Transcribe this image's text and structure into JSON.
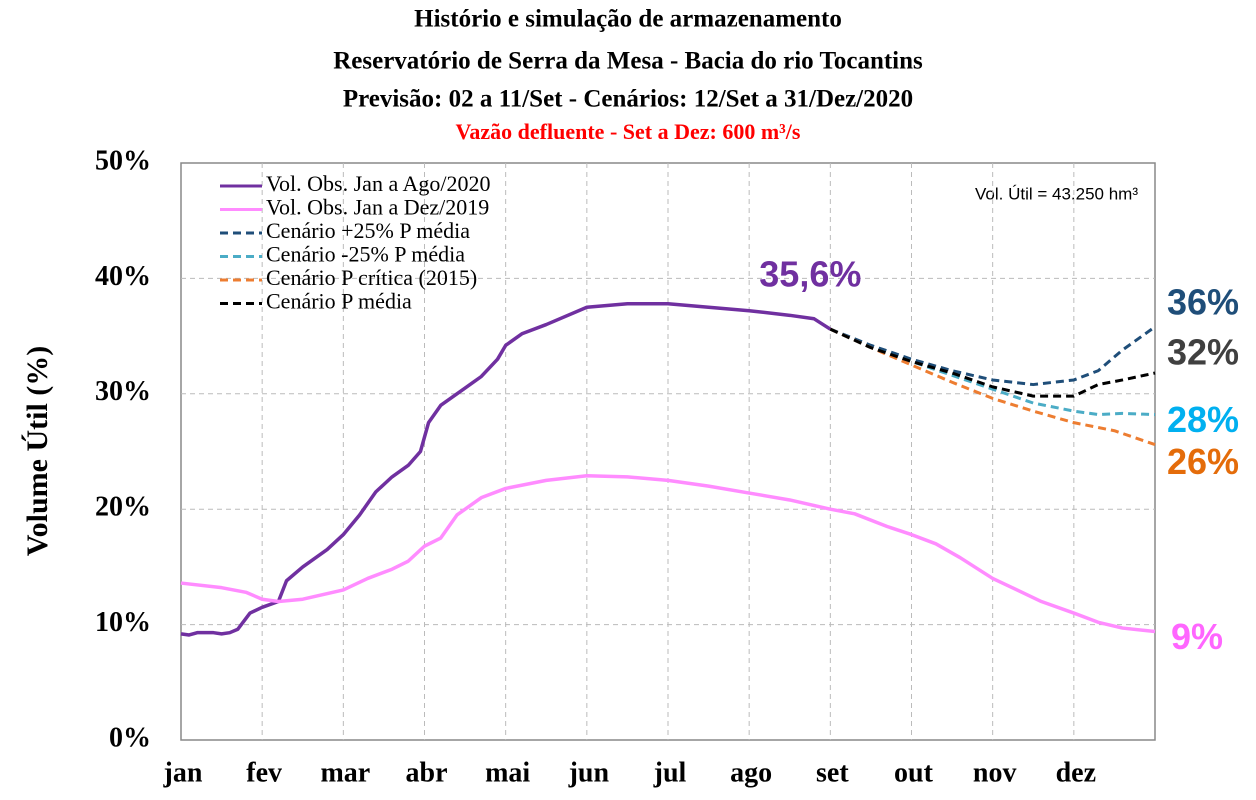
{
  "chart_data": {
    "type": "line",
    "title": [
      "Histório e simulação de armazenamento",
      "Reservatório de Serra da Mesa - Bacia do rio Tocantins",
      "Previsão: 02 a 11/Set - Cenários: 12/Set a 31/Dez/2020"
    ],
    "subtitle": "Vazão defluente - Set a  Dez: 600 m³/s",
    "subtitle_color": "#ff0000",
    "y_label": "Volume  Útil (%)",
    "annotation": "Vol. Útil  = 43.250 hm³",
    "xlim": [
      0,
      12
    ],
    "ylim": [
      0,
      50
    ],
    "grid": true,
    "xticks": [
      {
        "value": 0,
        "label": "jan"
      },
      {
        "value": 1,
        "label": "fev"
      },
      {
        "value": 2,
        "label": "mar"
      },
      {
        "value": 3,
        "label": "abr"
      },
      {
        "value": 4,
        "label": "mai"
      },
      {
        "value": 5,
        "label": "jun"
      },
      {
        "value": 6,
        "label": "jul"
      },
      {
        "value": 7,
        "label": "ago"
      },
      {
        "value": 8,
        "label": "set"
      },
      {
        "value": 9,
        "label": "out"
      },
      {
        "value": 10,
        "label": "nov"
      },
      {
        "value": 11,
        "label": "dez"
      }
    ],
    "yticks": [
      {
        "value": 0,
        "label": "0%"
      },
      {
        "value": 10,
        "label": "10%"
      },
      {
        "value": 20,
        "label": "20%"
      },
      {
        "value": 30,
        "label": "30%"
      },
      {
        "value": 40,
        "label": "40%"
      },
      {
        "value": 50,
        "label": "50%"
      }
    ],
    "series": [
      {
        "name": "Vol. Obs. Jan a Ago/2020",
        "color": "#7030a0",
        "dash": false,
        "end_label": "35,6%",
        "label_color": "#7030a0",
        "x": [
          0,
          0.1,
          0.2,
          0.4,
          0.5,
          0.6,
          0.7,
          0.85,
          1.0,
          1.2,
          1.3,
          1.5,
          1.8,
          2.0,
          2.2,
          2.4,
          2.6,
          2.8,
          2.95,
          3.05,
          3.2,
          3.5,
          3.7,
          3.9,
          4.0,
          4.2,
          4.5,
          5.0,
          5.5,
          6.0,
          6.5,
          7.0,
          7.5,
          7.8,
          8.0
        ],
        "values": [
          9.2,
          9.1,
          9.3,
          9.3,
          9.2,
          9.3,
          9.6,
          11.0,
          11.5,
          12.0,
          13.8,
          15.0,
          16.5,
          17.8,
          19.5,
          21.5,
          22.8,
          23.8,
          25.0,
          27.5,
          29.0,
          30.5,
          31.5,
          33.0,
          34.2,
          35.2,
          36.0,
          37.5,
          37.8,
          37.8,
          37.5,
          37.2,
          36.8,
          36.5,
          35.6
        ]
      },
      {
        "name": "Vol. Obs. Jan a Dez/2019",
        "color": "#ff8cff",
        "dash": false,
        "end_label": "9%",
        "label_color": "#ff66ff",
        "x": [
          0,
          0.5,
          0.8,
          1.0,
          1.2,
          1.5,
          2.0,
          2.3,
          2.6,
          2.8,
          3.0,
          3.2,
          3.4,
          3.7,
          4.0,
          4.5,
          5.0,
          5.5,
          6.0,
          6.5,
          7.0,
          7.5,
          8.0,
          8.3,
          8.7,
          9.0,
          9.3,
          9.6,
          10.0,
          10.3,
          10.6,
          11.0,
          11.3,
          11.6,
          12.0
        ],
        "values": [
          13.6,
          13.2,
          12.8,
          12.2,
          12.0,
          12.2,
          13.0,
          14.0,
          14.8,
          15.5,
          16.8,
          17.5,
          19.5,
          21.0,
          21.8,
          22.5,
          22.9,
          22.8,
          22.5,
          22.0,
          21.4,
          20.8,
          20.0,
          19.6,
          18.5,
          17.8,
          17.0,
          15.8,
          14.0,
          13.0,
          12.0,
          11.0,
          10.2,
          9.7,
          9.4
        ]
      },
      {
        "name": "Cenário +25% P média",
        "color": "#1f4e79",
        "dash": true,
        "end_label": "36%",
        "label_color": "#1f4e79",
        "x": [
          8,
          8.5,
          9,
          9.5,
          10,
          10.5,
          11,
          11.3,
          11.6,
          12
        ],
        "values": [
          35.6,
          34.2,
          33.0,
          32.0,
          31.2,
          30.8,
          31.2,
          32.0,
          33.8,
          35.8
        ]
      },
      {
        "name": "Cenário -25% P média",
        "color": "#4bacc6",
        "dash": true,
        "end_label": "28%",
        "label_color": "#00b0f0",
        "x": [
          8,
          8.5,
          9,
          9.5,
          10,
          10.5,
          11,
          11.3,
          11.6,
          12
        ],
        "values": [
          35.6,
          34.0,
          32.8,
          31.6,
          30.4,
          29.2,
          28.5,
          28.2,
          28.3,
          28.2
        ]
      },
      {
        "name": "Cenário P crítica (2015)",
        "color": "#ed7d31",
        "dash": true,
        "end_label": "26%",
        "label_color": "#e46c0a",
        "x": [
          8,
          8.5,
          9,
          9.5,
          10,
          10.5,
          11,
          11.5,
          12
        ],
        "values": [
          35.6,
          34.0,
          32.5,
          31.0,
          29.6,
          28.5,
          27.5,
          26.8,
          25.6
        ]
      },
      {
        "name": "Cenário P média",
        "color": "#000000",
        "dash": true,
        "end_label": "32%",
        "label_color": "#404040",
        "x": [
          8,
          8.5,
          9,
          9.5,
          10,
          10.5,
          11,
          11.3,
          11.6,
          12
        ],
        "values": [
          35.6,
          34.0,
          32.8,
          31.8,
          30.6,
          29.8,
          29.8,
          30.8,
          31.2,
          31.8
        ]
      }
    ]
  }
}
